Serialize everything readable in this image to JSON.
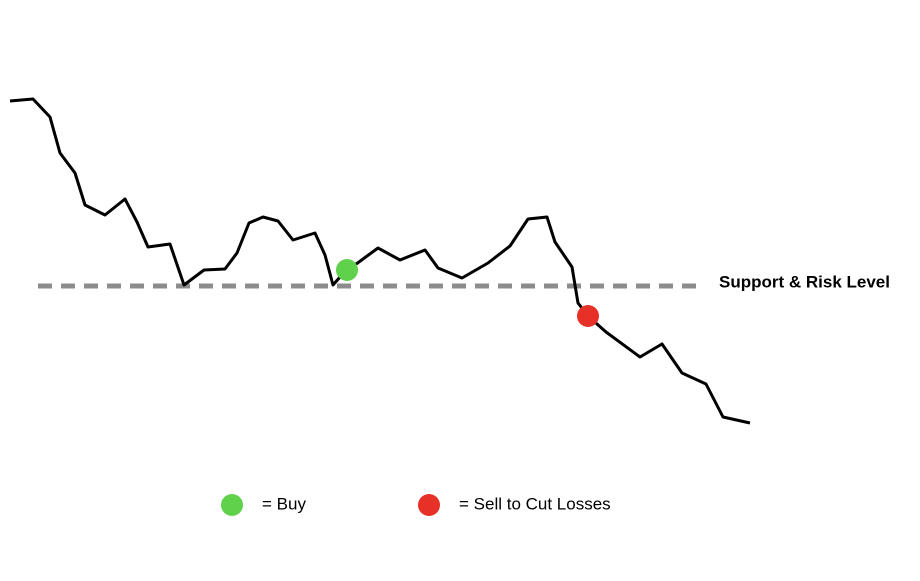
{
  "support_label": "Support & Risk Level",
  "legend": [
    {
      "label": "= Buy"
    },
    {
      "label": "= Sell to Cut Losses"
    }
  ]
}
